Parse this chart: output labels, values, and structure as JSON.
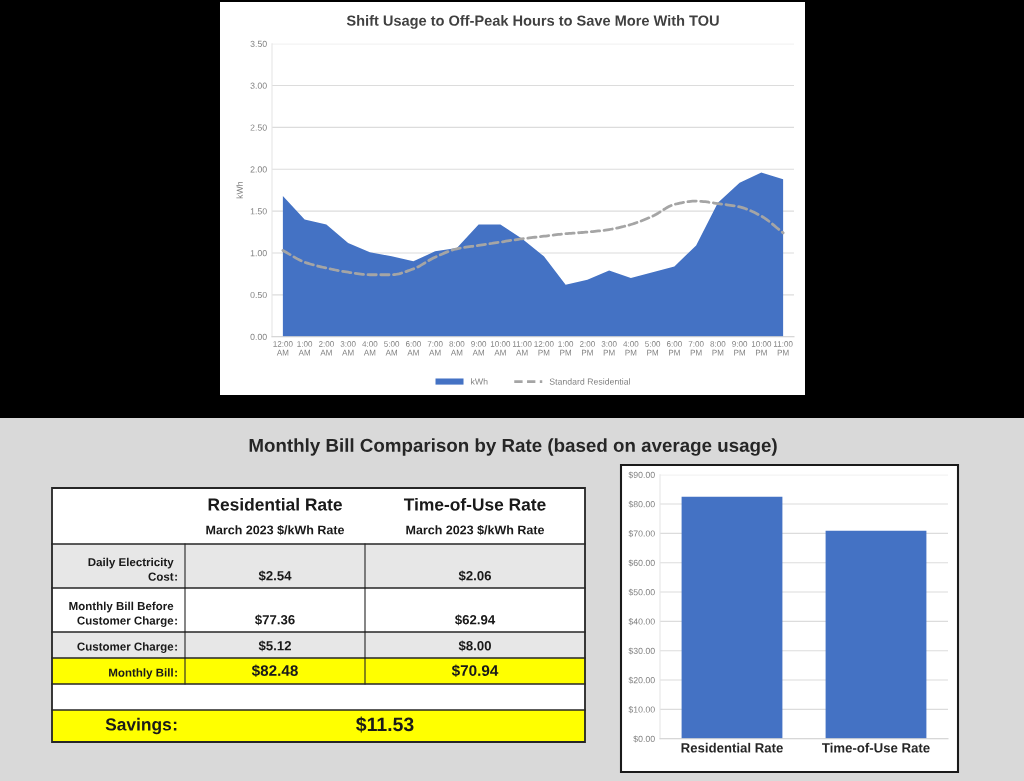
{
  "chart_data": [
    {
      "type": "area",
      "title": "Shift Usage to Off-Peak Hours to Save More With TOU",
      "ylabel": "kWh",
      "categories": [
        "12:00\nAM",
        "1:00\nAM",
        "2:00\nAM",
        "3:00\nAM",
        "4:00\nAM",
        "5:00\nAM",
        "6:00\nAM",
        "7:00\nAM",
        "8:00\nAM",
        "9:00\nAM",
        "10:00\nAM",
        "11:00\nAM",
        "12:00\nPM",
        "1:00\nPM",
        "2:00\nPM",
        "3:00\nPM",
        "4:00\nPM",
        "5:00\nPM",
        "6:00\nPM",
        "7:00\nPM",
        "8:00\nPM",
        "9:00\nPM",
        "10:00\nPM",
        "11:00\nPM"
      ],
      "series": [
        {
          "name": "kWh",
          "type": "area",
          "color": "#4472c4",
          "values": [
            1.68,
            1.4,
            1.34,
            1.12,
            1.01,
            0.96,
            0.9,
            1.02,
            1.06,
            1.34,
            1.34,
            1.17,
            0.96,
            0.62,
            0.68,
            0.79,
            0.7,
            0.77,
            0.84,
            1.09,
            1.6,
            1.84,
            1.96,
            1.88
          ]
        },
        {
          "name": "Standard Residential",
          "type": "line",
          "color": "#a5a5a5",
          "line_style": "dashed",
          "values": [
            1.03,
            0.89,
            0.82,
            0.77,
            0.74,
            0.74,
            0.81,
            0.95,
            1.05,
            1.09,
            1.13,
            1.17,
            1.2,
            1.23,
            1.25,
            1.28,
            1.34,
            1.44,
            1.58,
            1.62,
            1.59,
            1.55,
            1.44,
            1.24
          ]
        }
      ],
      "ylim": [
        0,
        3.5
      ],
      "yticks": [
        {
          "value": 0,
          "label": "0.00"
        },
        {
          "value": 0.5,
          "label": "0.50"
        },
        {
          "value": 1,
          "label": "1.00"
        },
        {
          "value": 1.5,
          "label": "1.50"
        },
        {
          "value": 2,
          "label": "2.00"
        },
        {
          "value": 2.5,
          "label": "2.50"
        },
        {
          "value": 3,
          "label": "3.00"
        },
        {
          "value": 3.5,
          "label": "3.50"
        }
      ],
      "grid": "y",
      "legend": "bottom"
    },
    {
      "type": "other",
      "title": "Monthly Bill Comparison by Rate (based on average usage)",
      "annotations": [
        ":"
      ],
      "categories": [
        "Daily Electricity\nCost",
        "Monthly Bill Before\nCustomer Charge",
        "Customer Charge",
        "Monthly Bill",
        null,
        "Savings"
      ],
      "colors": [
        "#e7e7e7",
        "#ffffff",
        "#e7e7e7",
        "#ffff00",
        "#ffffff",
        "#ffff00"
      ],
      "series": [
        {
          "name": "Residential Rate\nMarch 2023 $/kWh Rate",
          "colors": [
            "#e7e7e7",
            "#ffffff",
            "#e7e7e7",
            "#ffff00",
            null,
            "#ffff00"
          ],
          "values": [
            2.54,
            77.36,
            5.12,
            82.48,
            null,
            11.53
          ],
          "value_labels": [
            "$2.54",
            "$77.36",
            "$5.12",
            "$82.48",
            null,
            "$11.53"
          ]
        },
        {
          "name": "Time-of-Use Rate\nMarch 2023 $/kWh Rate",
          "colors": [
            "#e7e7e7",
            "#ffffff",
            "#e7e7e7",
            "#ffff00",
            null,
            null
          ],
          "values": [
            2.06,
            62.94,
            8.0,
            70.94,
            null,
            null
          ],
          "value_labels": [
            "$2.06",
            "$62.94",
            "$8.00",
            "$70.94",
            null,
            null
          ]
        }
      ]
    },
    {
      "type": "bar",
      "categories": [
        "Residential Rate",
        "Time-of-Use Rate"
      ],
      "values": [
        82.5,
        70.9
      ],
      "color": "#4472c4",
      "ylim": [
        0,
        90
      ],
      "yticks": [
        {
          "value": 0,
          "label": "$0.00"
        },
        {
          "value": 10,
          "label": "$10.00"
        },
        {
          "value": 20,
          "label": "$20.00"
        },
        {
          "value": 30,
          "label": "$30.00"
        },
        {
          "value": 40,
          "label": "$40.00"
        },
        {
          "value": 50,
          "label": "$50.00"
        },
        {
          "value": 60,
          "label": "$60.00"
        },
        {
          "value": 70,
          "label": "$70.00"
        },
        {
          "value": 80,
          "label": "$80.00"
        },
        {
          "value": 90,
          "label": "$90.00"
        }
      ],
      "grid": "y"
    }
  ]
}
